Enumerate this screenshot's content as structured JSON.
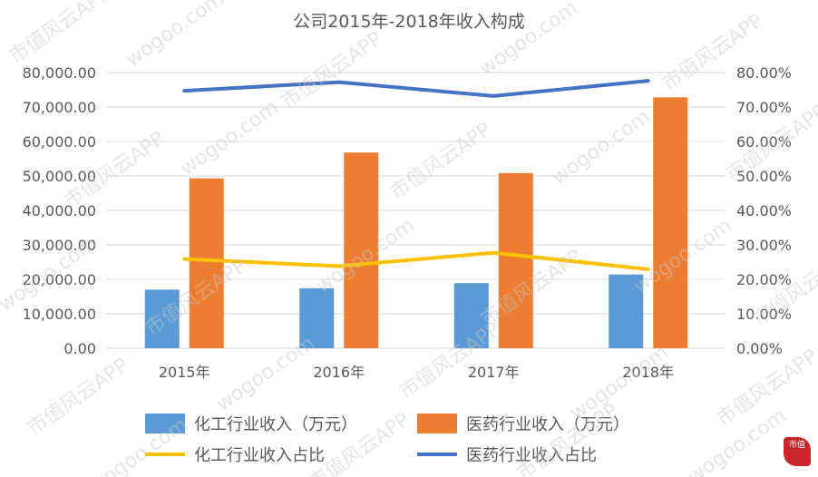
{
  "chart_data": {
    "type": "bar",
    "title": "公司2015年-2018年收入构成",
    "categories": [
      "2015年",
      "2016年",
      "2017年",
      "2018年"
    ],
    "series": [
      {
        "name": "化工行业收入（万元）",
        "kind": "bar",
        "axis": "left",
        "color": "#5b9bd5",
        "values": [
          17000,
          17400,
          18900,
          21400
        ]
      },
      {
        "name": "医药行业收入（万元）",
        "kind": "bar",
        "axis": "left",
        "color": "#ed7d31",
        "values": [
          49300,
          56800,
          50800,
          72800
        ]
      },
      {
        "name": "化工行业收入占比",
        "kind": "line",
        "axis": "right",
        "color": "#ffc000",
        "values": [
          25.9,
          23.8,
          27.7,
          22.9
        ]
      },
      {
        "name": "医药行业收入占比",
        "kind": "line",
        "axis": "right",
        "color": "#4472c4",
        "values": [
          74.7,
          77.2,
          73.2,
          77.6
        ]
      }
    ],
    "y_left": {
      "lim": [
        0,
        80000
      ],
      "ticks": [
        "0.00",
        "10,000.00",
        "20,000.00",
        "30,000.00",
        "40,000.00",
        "50,000.00",
        "60,000.00",
        "70,000.00",
        "80,000.00"
      ]
    },
    "y_right": {
      "lim": [
        0,
        80
      ],
      "ticks": [
        "0.00%",
        "10.00%",
        "20.00%",
        "30.00%",
        "40.00%",
        "50.00%",
        "60.00%",
        "70.00%",
        "80.00%"
      ]
    },
    "grid": true,
    "legend": "bottom"
  },
  "watermark": {
    "text1": "市值风云APP",
    "text2": "wogoo.com",
    "logo": "市值"
  }
}
